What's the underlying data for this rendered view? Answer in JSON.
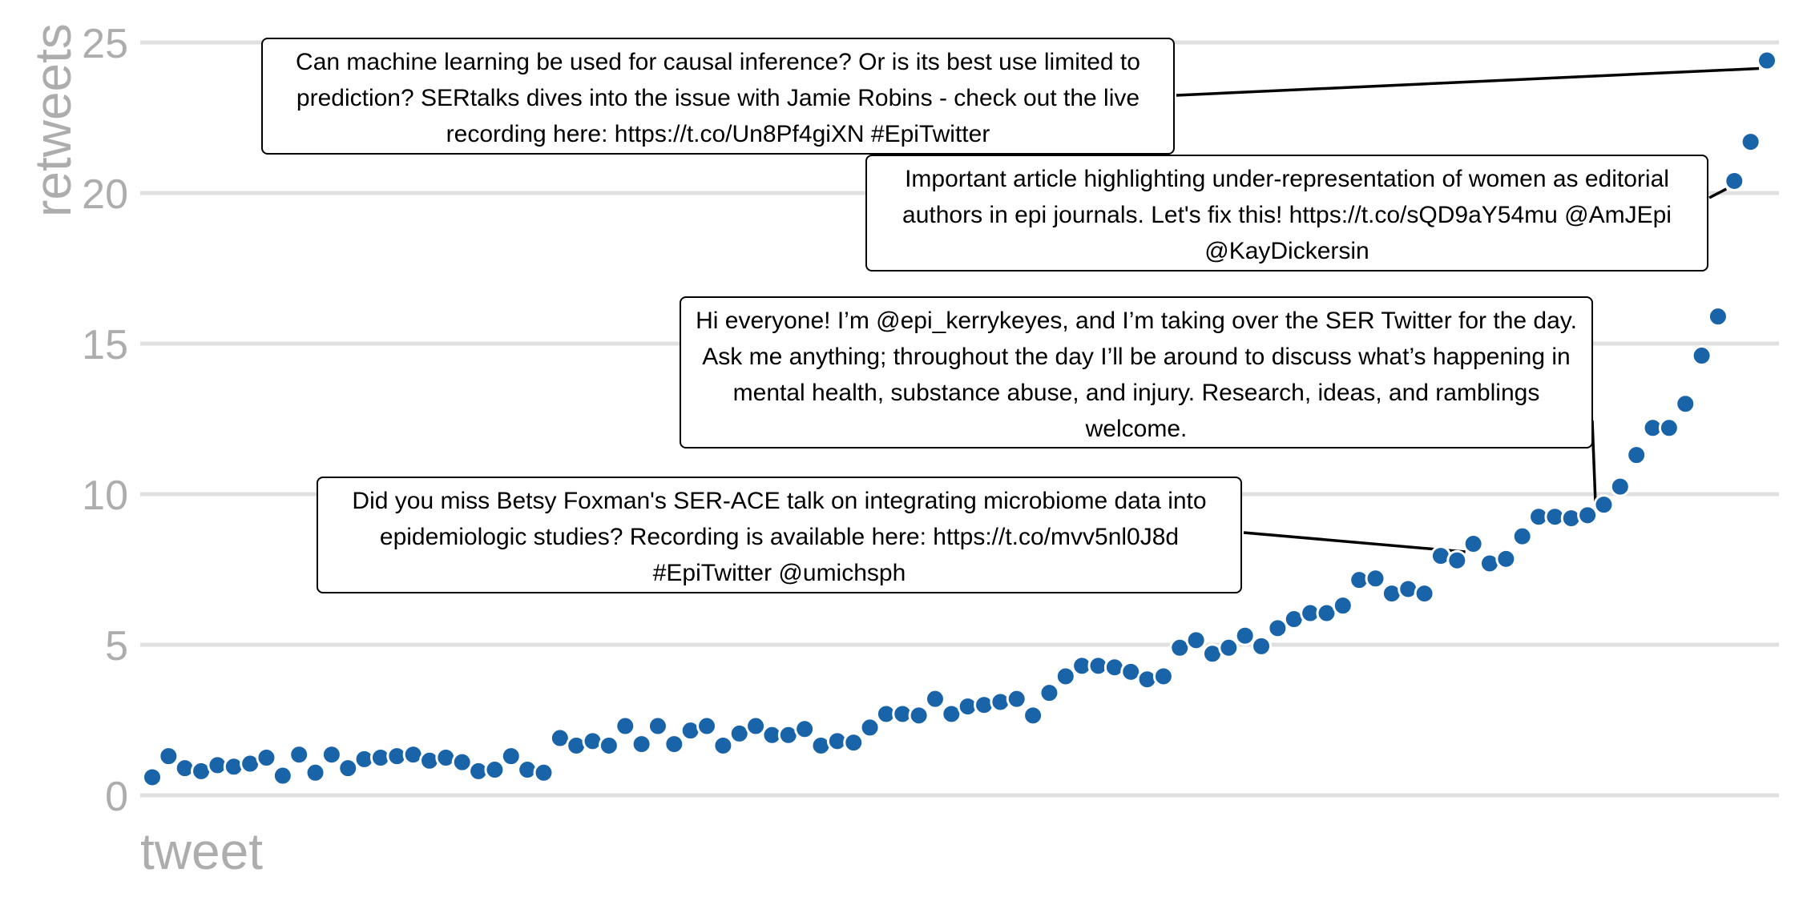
{
  "chart_data": {
    "type": "scatter",
    "xlabel": "tweet",
    "ylabel": "retweets",
    "ylim": [
      0,
      25
    ],
    "yticks": [
      "0",
      "5",
      "10",
      "15",
      "20",
      "25"
    ],
    "grid": "horizontal",
    "point_color": "#1964A8",
    "grid_color": "#e0e0e0",
    "values": [
      0.6,
      1.3,
      0.9,
      0.8,
      1.0,
      0.95,
      1.05,
      1.25,
      0.65,
      1.35,
      0.75,
      1.35,
      0.9,
      1.2,
      1.25,
      1.3,
      1.35,
      1.15,
      1.25,
      1.1,
      0.8,
      0.85,
      1.3,
      0.85,
      0.75,
      1.9,
      1.65,
      1.8,
      1.65,
      2.3,
      1.7,
      2.3,
      1.7,
      2.15,
      2.3,
      1.65,
      2.05,
      2.3,
      2.0,
      2.0,
      2.2,
      1.65,
      1.8,
      1.75,
      2.25,
      2.7,
      2.7,
      2.65,
      3.2,
      2.7,
      2.95,
      3.0,
      3.1,
      3.2,
      2.65,
      3.4,
      3.95,
      4.3,
      4.3,
      4.25,
      4.1,
      3.85,
      3.95,
      4.9,
      5.15,
      4.7,
      4.9,
      5.3,
      4.95,
      5.55,
      5.85,
      6.05,
      6.05,
      6.3,
      7.15,
      7.2,
      6.7,
      6.85,
      6.7,
      7.95,
      7.8,
      8.35,
      7.7,
      7.85,
      8.6,
      9.25,
      9.25,
      9.2,
      9.3,
      9.65,
      10.25,
      11.3,
      12.2,
      12.2,
      13.0,
      14.6,
      15.9,
      20.4,
      21.7,
      24.4
    ],
    "annotations": [
      {
        "text": "Can machine learning be used for causal inference? Or is its best use limited to prediction? SERtalks dives into the issue with Jamie Robins - check out the live recording here: https://t.co/Un8Pf4giXN #EpiTwitter",
        "point_index": 99,
        "y": 24.4
      },
      {
        "text": "Important article highlighting under-representation of women as editorial authors in epi journals. Let's fix this! https://t.co/sQD9aY54mu @AmJEpi @KayDickersin",
        "point_index": 97,
        "y": 20.4
      },
      {
        "text": "Hi everyone! I’m @epi_kerrykeyes, and I’m taking over the SER Twitter for the day. Ask me anything; throughout the day I’ll be around to discuss what’s happening in mental health, substance abuse, and injury. Research, ideas, and ramblings welcome.",
        "point_index": 89,
        "y": 9.65
      },
      {
        "text": "Did you miss Betsy Foxman's SER-ACE talk on integrating microbiome data into epidemiologic studies? Recording is available here: https://t.co/mvv5nl0J8d #EpiTwitter @umichsph",
        "point_index": 81,
        "y": 8.35
      }
    ]
  }
}
